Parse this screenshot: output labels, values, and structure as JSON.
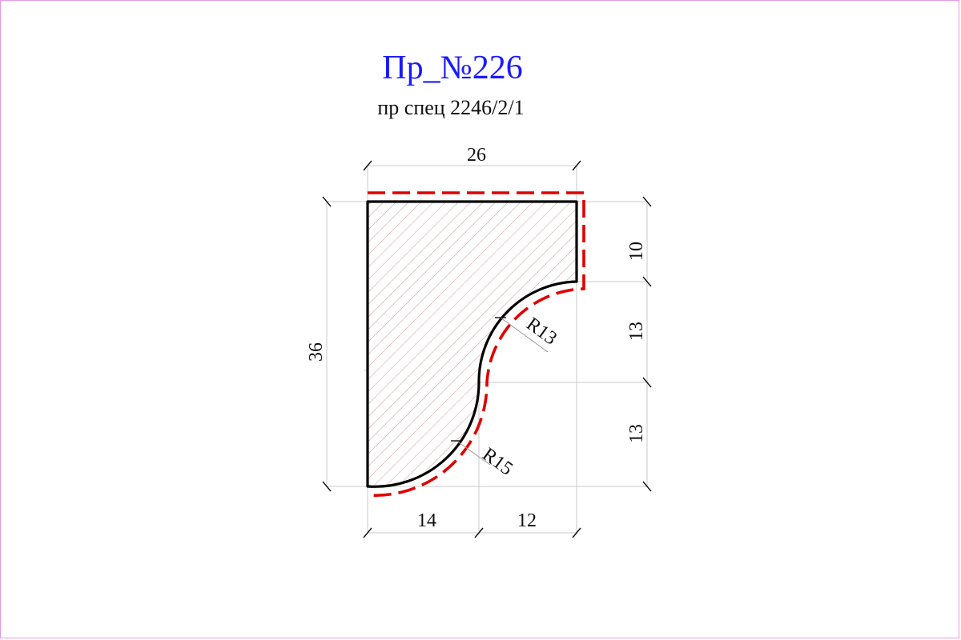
{
  "title": "Пр_№226",
  "subtitle": "пр спец 2246/2/1",
  "dimensions": {
    "top_width": "26",
    "left_height": "36",
    "right_top": "10",
    "right_middle": "13",
    "right_bottom": "13",
    "bottom_left": "14",
    "bottom_right": "12",
    "radius_upper": "R13",
    "radius_lower": "R15"
  },
  "colors": {
    "title": "#1a1aff",
    "border": "#e39be3",
    "cover_line": "#e00000",
    "hatch": "#c49a9a"
  }
}
